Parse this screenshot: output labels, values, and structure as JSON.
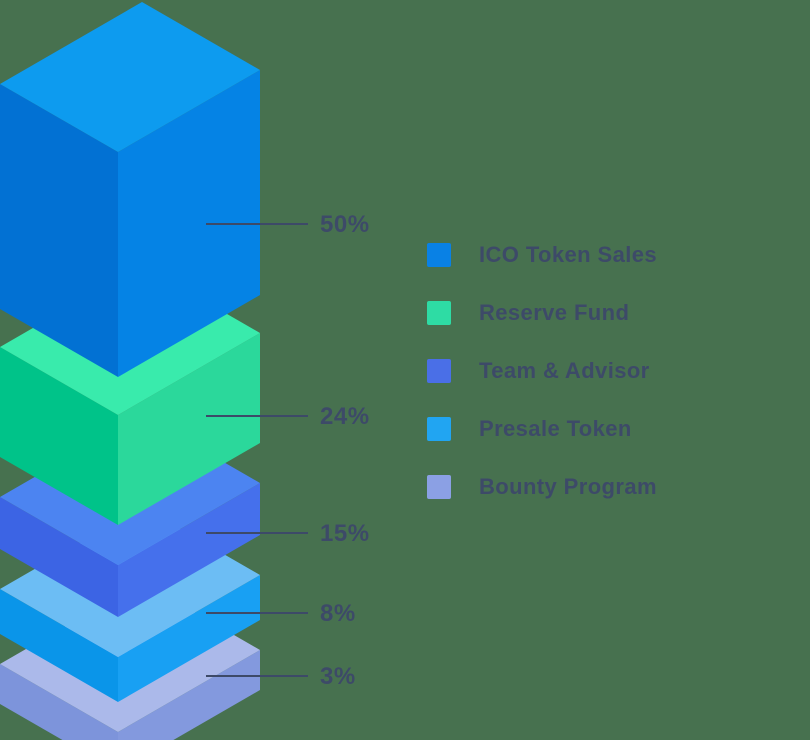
{
  "chart_data": {
    "type": "bar",
    "variant": "isometric-3d-stacked-tower",
    "title": "",
    "legend_position": "right",
    "background_color": "#47714F",
    "annotation_color": "#3D4A68",
    "categories": [
      "ICO Token Sales",
      "Reserve Fund",
      "Team & Advisor",
      "Presale Token",
      "Bounty Program"
    ],
    "values": [
      50,
      24,
      15,
      8,
      3
    ],
    "segments": [
      {
        "label": "ICO Token Sales",
        "value_pct": 50,
        "value_label": "50%",
        "legend_color": "#0981E5",
        "faces": {
          "top": "#0D9BEF",
          "left": "#0271D3",
          "right": "#0583E5"
        }
      },
      {
        "label": "Reserve Fund",
        "value_pct": 24,
        "value_label": "24%",
        "legend_color": "#2EDCA4",
        "faces": {
          "top": "#39EBAC",
          "left": "#00C389",
          "right": "#2BD89B"
        }
      },
      {
        "label": "Team & Advisor",
        "value_pct": 15,
        "value_label": "15%",
        "legend_color": "#4A6FE7",
        "faces": {
          "top": "#4C84F1",
          "left": "#3C64E4",
          "right": "#4570EC"
        }
      },
      {
        "label": "Presale Token",
        "value_pct": 8,
        "value_label": "8%",
        "legend_color": "#21A5F2",
        "faces": {
          "top": "#6CBDF4",
          "left": "#0A95E9",
          "right": "#18A0F3"
        }
      },
      {
        "label": "Bounty Program",
        "value_pct": 3,
        "value_label": "3%",
        "legend_color": "#8BA0E4",
        "faces": {
          "top": "#ABB9EA",
          "left": "#7D94DB",
          "right": "#8399DE"
        }
      }
    ]
  }
}
